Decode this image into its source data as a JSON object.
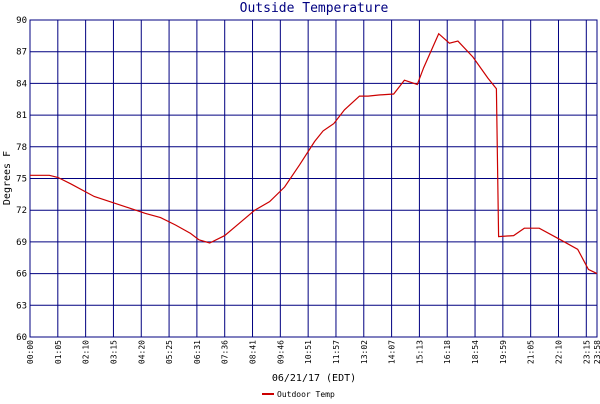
{
  "chart_data": {
    "type": "line",
    "title": "Outside Temperature",
    "xlabel": "06/21/17 (EDT)",
    "ylabel": "Degrees F",
    "x": [
      0,
      9,
      13,
      19,
      30,
      42,
      54,
      61,
      68,
      75,
      79,
      84,
      91,
      98,
      105,
      112,
      119,
      126,
      133,
      137,
      142,
      147,
      154,
      158,
      163,
      170,
      175,
      181,
      184,
      191,
      196,
      200,
      207,
      214,
      218,
      219,
      226,
      231,
      238,
      247,
      256,
      261,
      265
    ],
    "series": [
      {
        "name": "Outdoor Temp",
        "color": "#cc0000",
        "values": [
          75.3,
          75.3,
          75.1,
          74.5,
          73.3,
          72.5,
          71.7,
          71.3,
          70.6,
          69.8,
          69.2,
          68.9,
          69.6,
          70.8,
          72.0,
          72.8,
          74.2,
          76.3,
          78.5,
          79.5,
          80.2,
          81.5,
          82.8,
          82.8,
          82.9,
          83.0,
          84.3,
          83.9,
          85.5,
          88.7,
          87.8,
          88.0,
          86.5,
          84.5,
          83.5,
          69.5,
          69.6,
          70.3,
          70.3,
          69.3,
          68.3,
          66.4,
          66.0
        ]
      }
    ],
    "xlim": [
      0,
      265
    ],
    "xticks": [
      {
        "value": 0,
        "label": "00:00"
      },
      {
        "value": 13,
        "label": "01:05"
      },
      {
        "value": 26,
        "label": "02:10"
      },
      {
        "value": 39,
        "label": "03:15"
      },
      {
        "value": 52,
        "label": "04:20"
      },
      {
        "value": 65,
        "label": "05:25"
      },
      {
        "value": 78,
        "label": "06:31"
      },
      {
        "value": 91,
        "label": "07:36"
      },
      {
        "value": 104,
        "label": "08:41"
      },
      {
        "value": 117,
        "label": "09:46"
      },
      {
        "value": 130,
        "label": "10:51"
      },
      {
        "value": 143,
        "label": "11:57"
      },
      {
        "value": 156,
        "label": "13:02"
      },
      {
        "value": 169,
        "label": "14:07"
      },
      {
        "value": 182,
        "label": "15:13"
      },
      {
        "value": 195,
        "label": "16:18"
      },
      {
        "value": 208,
        "label": "18:54"
      },
      {
        "value": 221,
        "label": "19:59"
      },
      {
        "value": 234,
        "label": "21:05"
      },
      {
        "value": 247,
        "label": "22:10"
      },
      {
        "value": 260,
        "label": "23:15"
      },
      {
        "value": 265,
        "label": "23:58"
      }
    ],
    "ylim": [
      60,
      90
    ],
    "yticks": [
      60,
      63,
      66,
      69,
      72,
      75,
      78,
      81,
      84,
      87,
      90
    ],
    "grid": true,
    "grid_color": "#000080"
  }
}
